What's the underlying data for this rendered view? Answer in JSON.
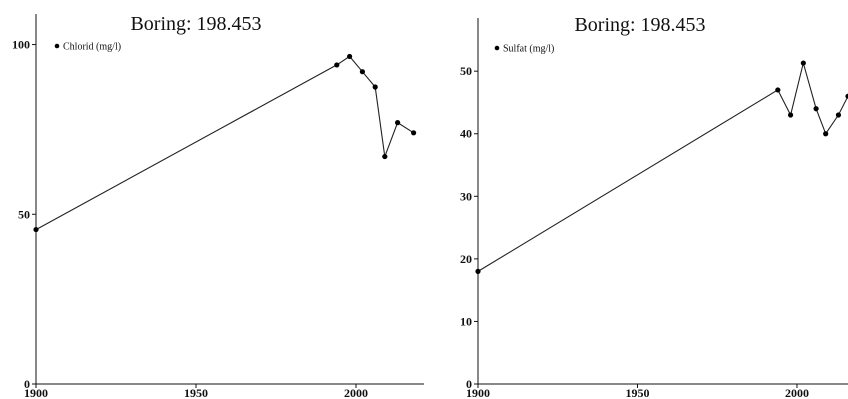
{
  "chart_data": [
    {
      "type": "line",
      "title": "Boring: 198.453",
      "xlabel": "",
      "ylabel": "",
      "xlim": [
        1900,
        2020
      ],
      "ylim": [
        0,
        109
      ],
      "xticks": [
        1900,
        1950,
        2000
      ],
      "yticks": [
        0,
        50,
        100
      ],
      "legend": "top-left",
      "series": [
        {
          "name": "Chlorid (mg/l)",
          "x": [
            1900,
            1994,
            1998,
            2002,
            2006,
            2009,
            2013,
            2018
          ],
          "y": [
            45.5,
            94,
            96.5,
            92,
            87.5,
            67,
            77,
            74
          ]
        }
      ]
    },
    {
      "type": "line",
      "title": "Boring: 198.453",
      "xlabel": "",
      "ylabel": "",
      "xlim": [
        1900,
        2016
      ],
      "ylim": [
        0,
        58.5
      ],
      "xticks": [
        1900,
        1950,
        2000
      ],
      "yticks": [
        0,
        10,
        20,
        30,
        40,
        50
      ],
      "legend": "top-left",
      "series": [
        {
          "name": "Sulfat (mg/l)",
          "x": [
            1900,
            1994,
            1998,
            2002,
            2006,
            2009,
            2013,
            2016
          ],
          "y": [
            18,
            47,
            43,
            51.3,
            44,
            40,
            43,
            46
          ]
        }
      ]
    }
  ]
}
